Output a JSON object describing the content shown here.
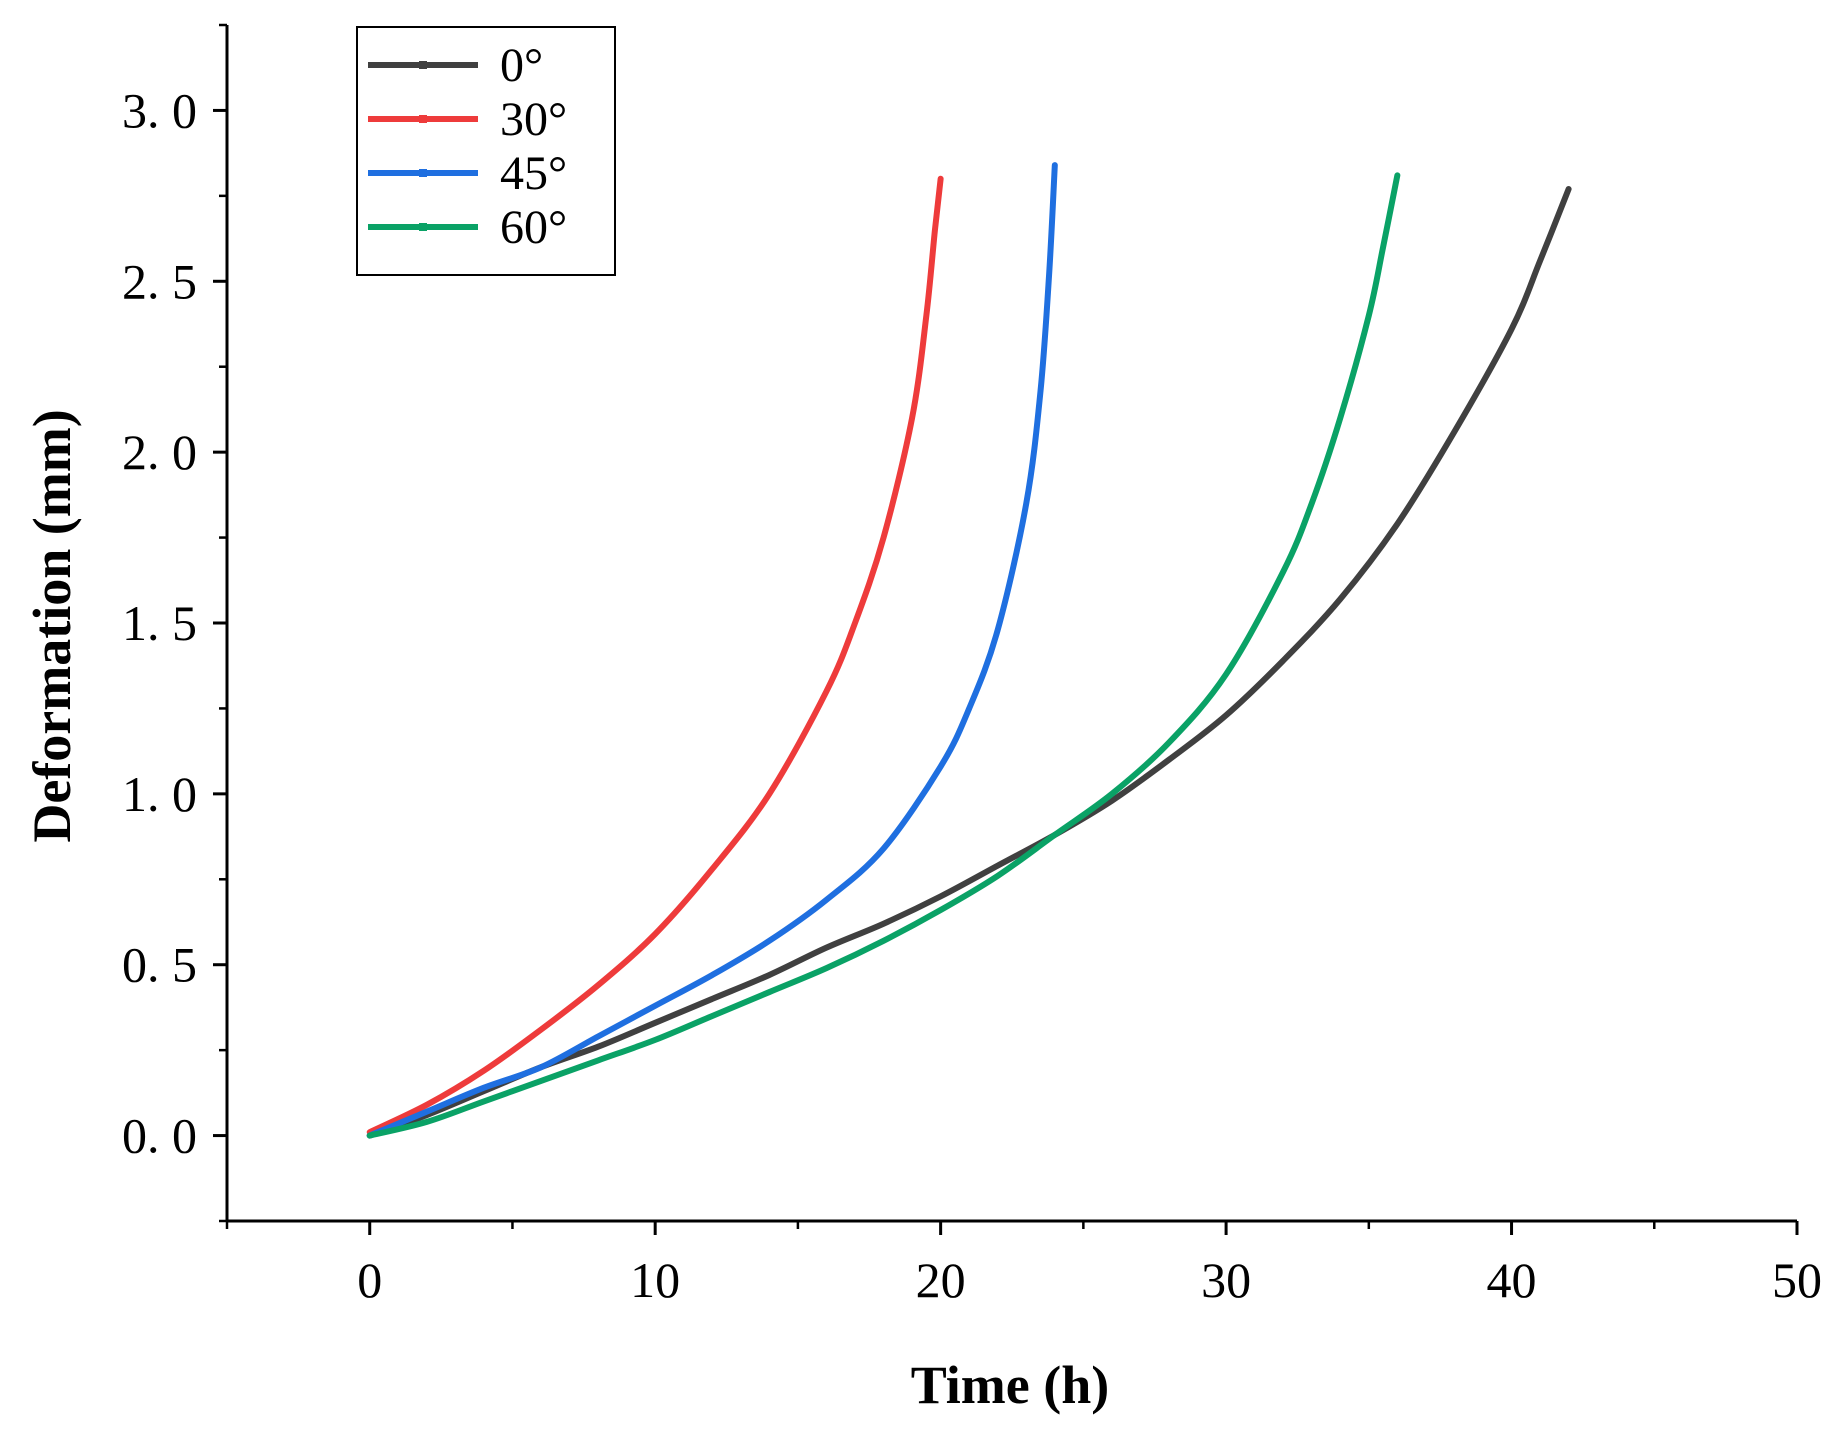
{
  "chart_data": {
    "type": "line",
    "title": "",
    "xlabel": "Time (h)",
    "ylabel": "Deformation (mm)",
    "xlim": [
      -5,
      50
    ],
    "ylim": [
      -0.25,
      3.25
    ],
    "x_ticks": [
      0,
      10,
      20,
      30,
      40,
      50
    ],
    "x_tick_labels": [
      "0",
      "10",
      "20",
      "30",
      "40",
      "50"
    ],
    "y_ticks": [
      0,
      0.5,
      1,
      1.5,
      2,
      2.5,
      3
    ],
    "y_tick_labels": [
      "0. 0",
      "0. 5",
      "1. 0",
      "1. 5",
      "2. 0",
      "2. 5",
      "3. 0"
    ],
    "grid": false,
    "legend_position": "top-left",
    "series": [
      {
        "name": "0°",
        "color": "#404040",
        "x": [
          0,
          2,
          4,
          6,
          8,
          10,
          12,
          14,
          16,
          18,
          20,
          22,
          24,
          26,
          28,
          30,
          32,
          34,
          36,
          38,
          40,
          41,
          42
        ],
        "y": [
          0,
          0.06,
          0.13,
          0.2,
          0.26,
          0.33,
          0.4,
          0.47,
          0.55,
          0.62,
          0.7,
          0.79,
          0.88,
          0.98,
          1.1,
          1.23,
          1.39,
          1.57,
          1.79,
          2.06,
          2.36,
          2.56,
          2.77
        ]
      },
      {
        "name": "30°",
        "color": "#ee3b3b",
        "x": [
          0,
          2,
          4,
          6,
          8,
          10,
          12,
          14,
          16,
          17,
          18,
          19,
          19.5,
          19.8,
          20
        ],
        "y": [
          0.01,
          0.09,
          0.19,
          0.31,
          0.44,
          0.59,
          0.78,
          1.0,
          1.3,
          1.5,
          1.75,
          2.1,
          2.4,
          2.65,
          2.8
        ]
      },
      {
        "name": "45°",
        "color": "#1f6fe0",
        "x": [
          0,
          2,
          4,
          6,
          8,
          10,
          12,
          14,
          16,
          18,
          20,
          21,
          22,
          23,
          23.5,
          23.8,
          24
        ],
        "y": [
          0,
          0.07,
          0.14,
          0.2,
          0.29,
          0.38,
          0.47,
          0.57,
          0.69,
          0.84,
          1.08,
          1.25,
          1.48,
          1.85,
          2.18,
          2.52,
          2.84
        ]
      },
      {
        "name": "60°",
        "color": "#0aa266",
        "x": [
          0,
          2,
          4,
          6,
          8,
          10,
          12,
          14,
          16,
          18,
          20,
          22,
          24,
          26,
          28,
          30,
          32,
          33,
          34,
          35,
          35.5,
          36
        ],
        "y": [
          0,
          0.04,
          0.1,
          0.16,
          0.22,
          0.28,
          0.35,
          0.42,
          0.49,
          0.57,
          0.66,
          0.76,
          0.88,
          1.0,
          1.15,
          1.35,
          1.65,
          1.85,
          2.1,
          2.4,
          2.6,
          2.81
        ]
      }
    ]
  }
}
